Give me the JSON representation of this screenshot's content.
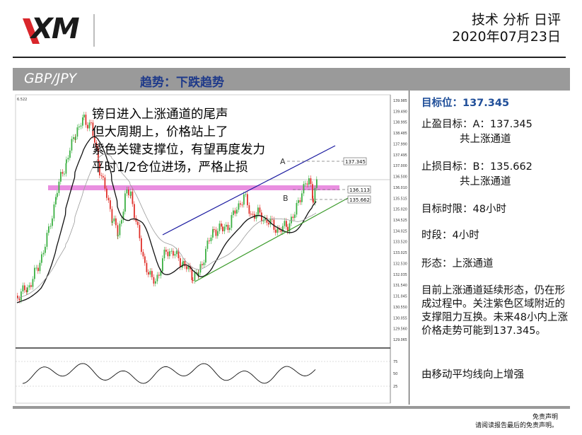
{
  "brand": {
    "logo_text": "XM"
  },
  "header": {
    "title": "技术 分析 日评",
    "date": "2020年07月23日"
  },
  "band": {
    "pair": "GBP/JPY",
    "trend": "趋势：下跌趋势"
  },
  "chart": {
    "annotation_lines": [
      "镑日进入上涨通道的尾声",
      "但大周期上，价格站上了",
      "紫色关键支撑位，有望再度发力",
      "平时1/2仓位进场，严格止损"
    ],
    "top_left_value": "6.522",
    "price_axis_ticks": [
      "139.985",
      "139.490",
      "138.995",
      "138.485",
      "137.990",
      "137.495",
      "137.000",
      "136.500",
      "136.010",
      "135.515",
      "135.020",
      "134.525",
      "134.025",
      "133.520",
      "133.025",
      "132.530",
      "132.035",
      "131.540",
      "131.045",
      "130.550",
      "130.055",
      "129.560",
      "129.065"
    ],
    "level_labels": {
      "a": "137.345",
      "b1": "136.113",
      "b2": "135.662"
    },
    "point_labels": {
      "a": "A",
      "b": "B"
    },
    "rsi_ticks": [
      "75",
      "50",
      "25"
    ],
    "colors": {
      "candle_up": "#3cb043",
      "candle_down": "#e0302a",
      "channel_upper": "#1a1aa0",
      "channel_lower": "#3a9a2a",
      "zone": "#e98fe0",
      "ma": "#111111"
    }
  },
  "side": {
    "target": "目标位：137.345",
    "tp_line1": "止盈目标：A：137.345",
    "tp_line2": "共上涨通道",
    "sl_line1": "止损目标：B：135.662",
    "sl_line2": "共上涨通道",
    "timeframe": "目标时限：48小时",
    "period": "时段：4小时",
    "pattern": "形态：上涨通道",
    "description": "目前上涨通道延续形态，仍在形成过程中。关注紫色区域附近的支撑阻力互换。未来48小内上涨价格走势可能到137.345。",
    "ma_note": "由移动平均线向上增强"
  },
  "footer": {
    "line1": "免责声明",
    "line2": "请阅读报告最后的免责声明。"
  }
}
